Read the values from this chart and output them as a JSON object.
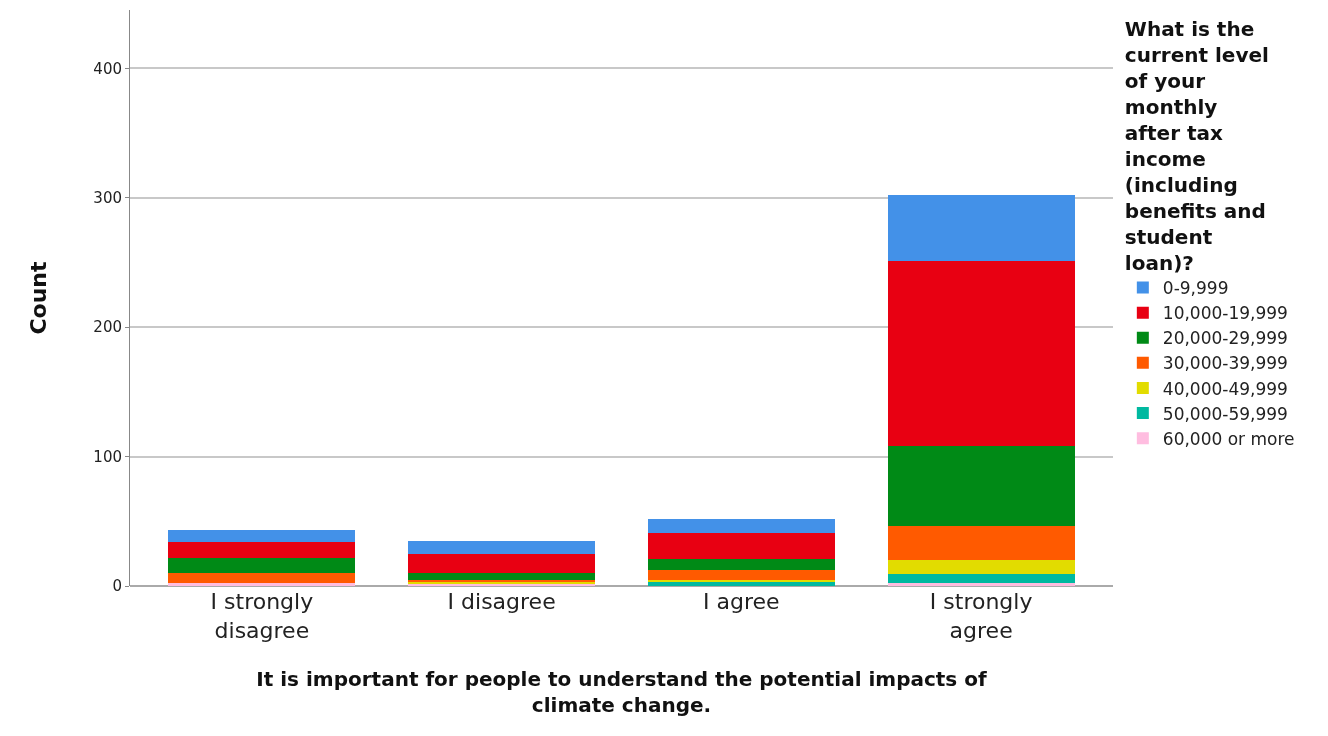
{
  "chart_data": {
    "type": "bar",
    "stacked": true,
    "xlabel": "It is important for people to understand the potential impacts of\nclimate change.",
    "ylabel": "Count",
    "legend_title": "What is the\ncurrent level\nof your\nmonthly\nafter tax\nincome\n(including\nbenefits and\nstudent\nloan)?",
    "categories": [
      "I strongly\ndisagree",
      "I disagree",
      "I agree",
      "I strongly\nagree"
    ],
    "series": [
      {
        "name": "60,000 or more",
        "color": "#ffbde0",
        "values": [
          2,
          2,
          null,
          2
        ]
      },
      {
        "name": "50,000-59,999",
        "color": "#00b9a0",
        "values": [
          0,
          0,
          3,
          7
        ]
      },
      {
        "name": "40,000-49,999",
        "color": "#e2dc00",
        "values": [
          0,
          1,
          2,
          11
        ]
      },
      {
        "name": "30,000-39,999",
        "color": "#ff5a00",
        "values": [
          8,
          2,
          7,
          26
        ]
      },
      {
        "name": "20,000-29,999",
        "color": "#008a16",
        "values": [
          12,
          5,
          9,
          62
        ]
      },
      {
        "name": "10,000-19,999",
        "color": "#e80012",
        "values": [
          12,
          15,
          20,
          143
        ]
      },
      {
        "name": "0-9,999",
        "color": "#4391e8",
        "values": [
          9,
          10,
          11,
          51
        ]
      }
    ],
    "ylim": [
      0,
      445
    ],
    "yticks": [
      0,
      100,
      200,
      300,
      400
    ],
    "grid": "y",
    "legend": "right"
  }
}
